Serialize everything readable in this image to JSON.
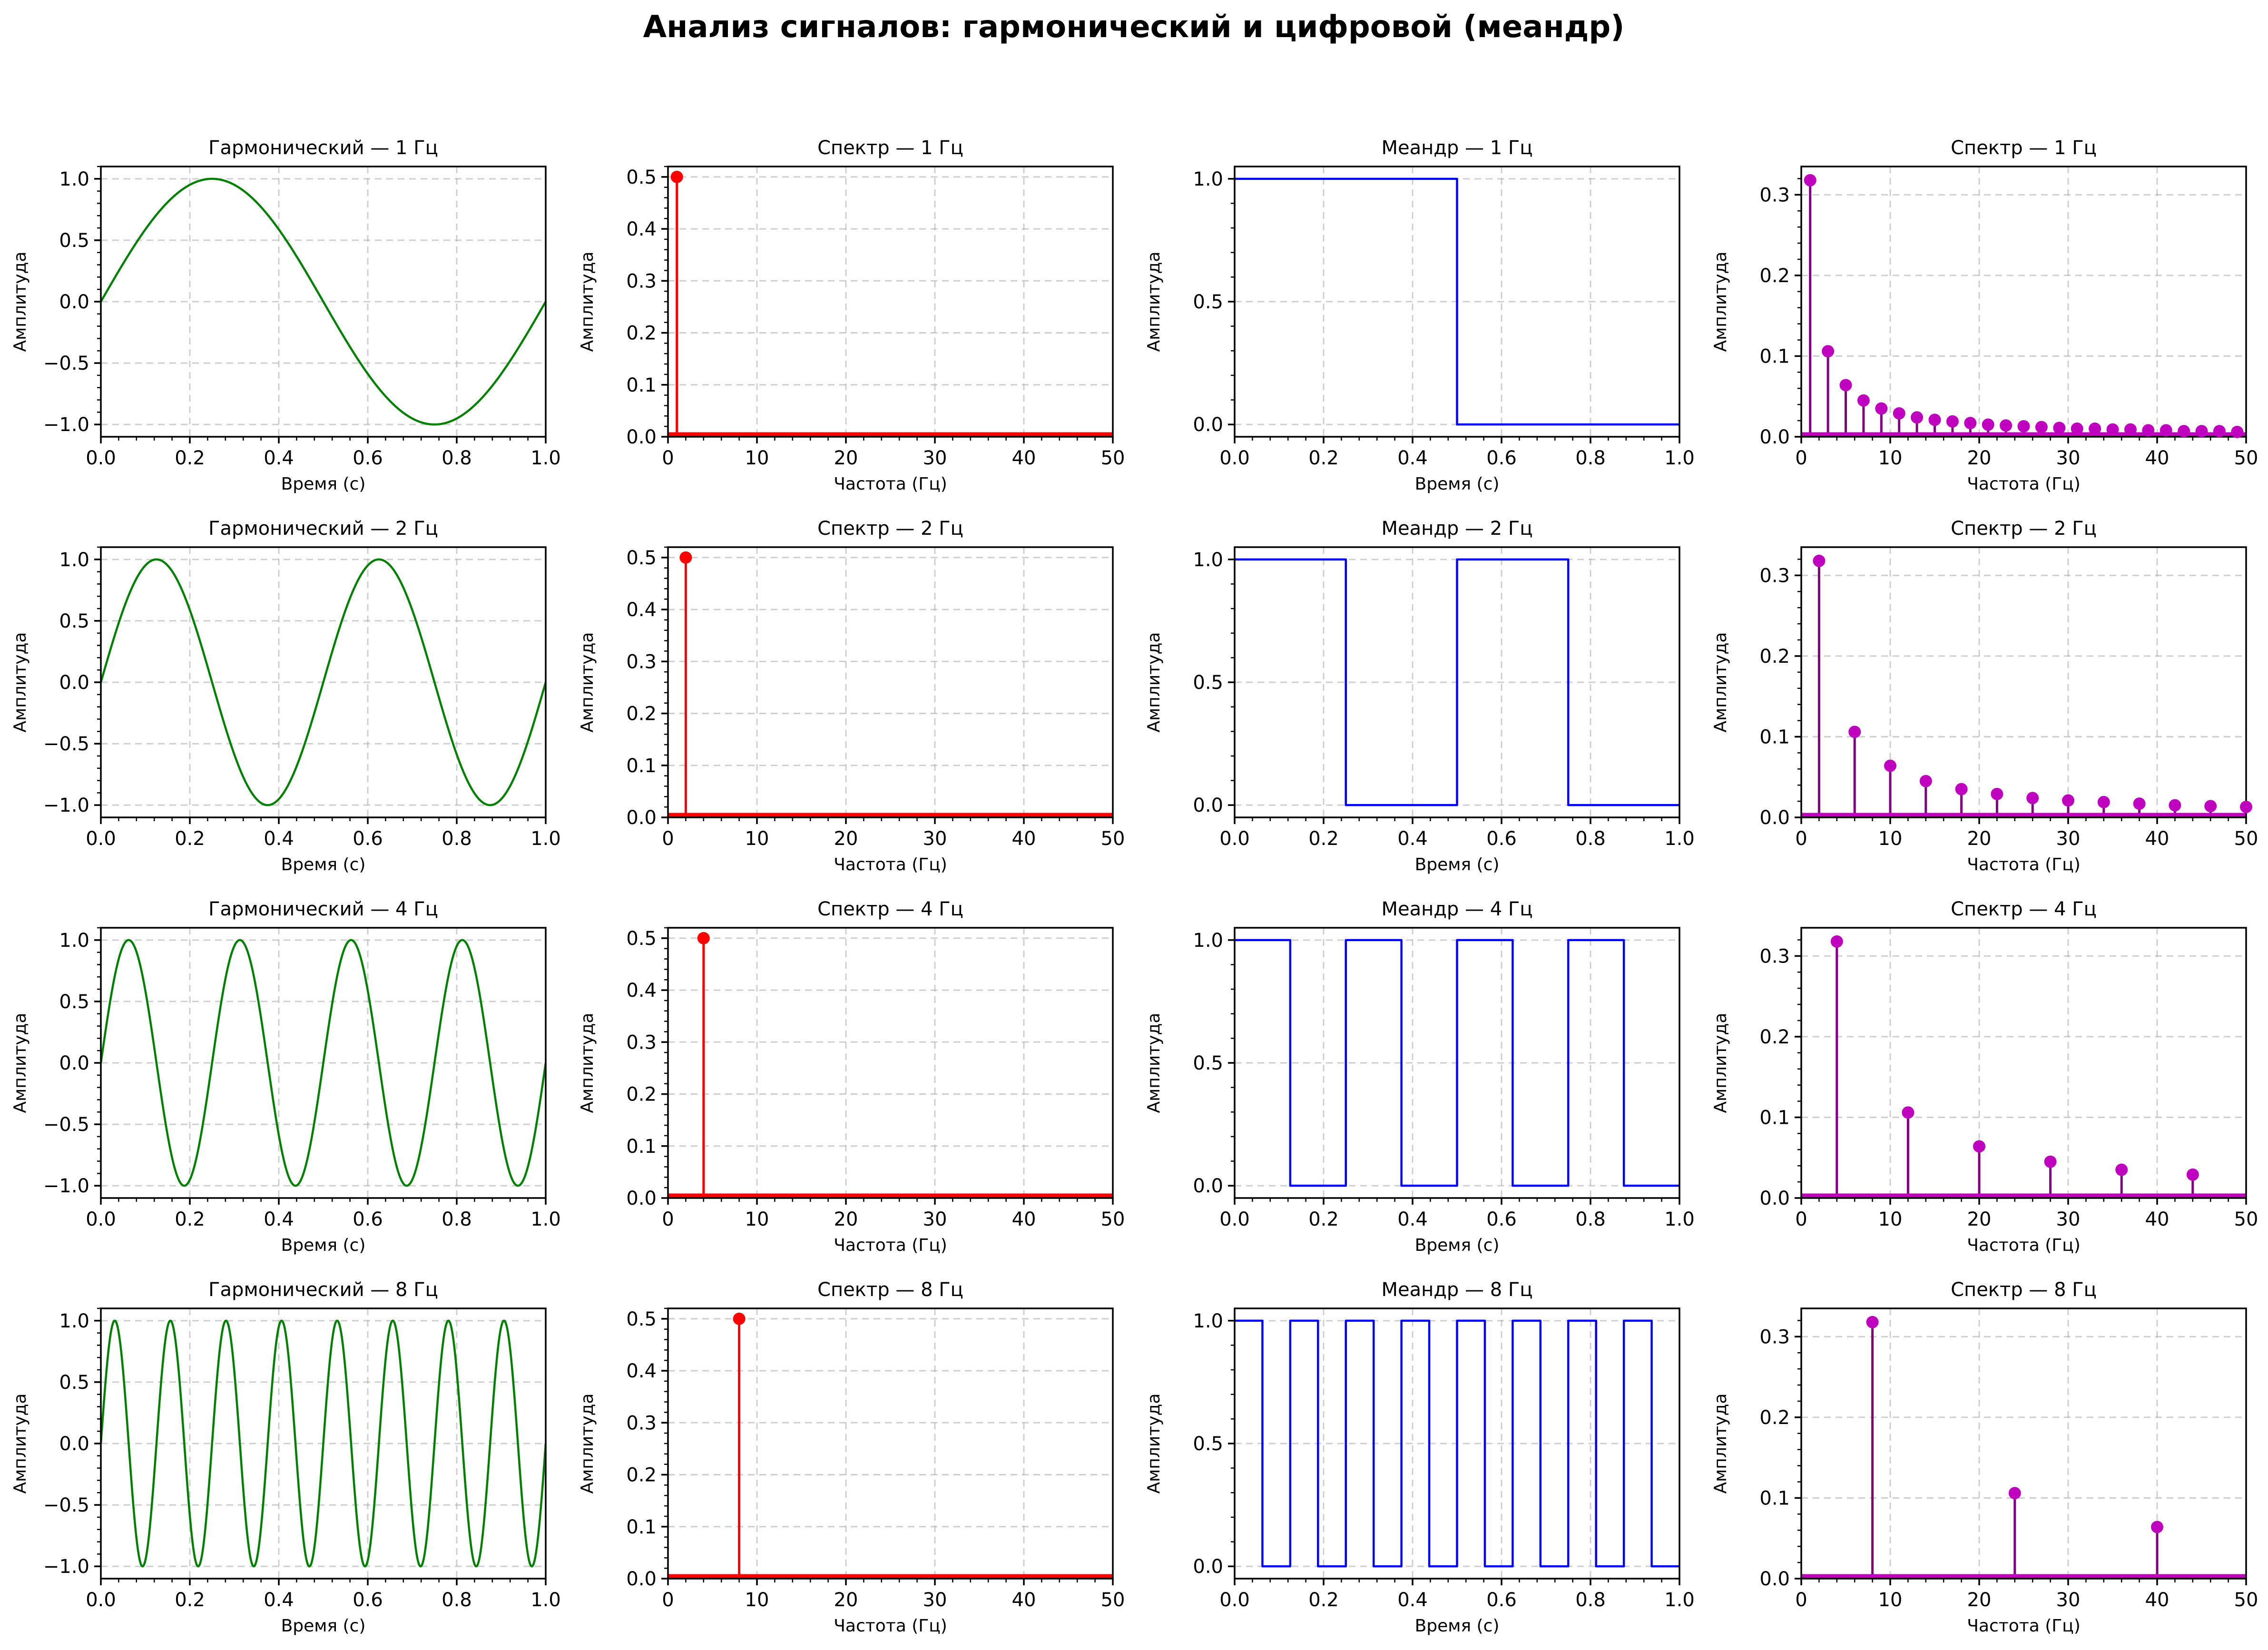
{
  "suptitle": "Анализ сигналов: гармонический и цифровой (меандр)",
  "colors": {
    "harmonic": "#008000",
    "harmonic_spectrum": "#ff0000",
    "meander": "#0000ff",
    "meander_spectrum_marker": "#bf00bf",
    "meander_spectrum_stem": "#800080",
    "grid": "#b0b0b0"
  },
  "chart_data": [
    {
      "type": "line",
      "title": "Гармонический — 1 Гц",
      "xlabel": "Время (с)",
      "ylabel": "Амплитуда",
      "xlim": [
        0,
        1
      ],
      "ylim": [
        -1.1,
        1.1
      ],
      "xticks": [
        0,
        0.2,
        0.4,
        0.6,
        0.8,
        1
      ],
      "xtick_labels": [
        "0.0",
        "0.2",
        "0.4",
        "0.6",
        "0.8",
        "1.0"
      ],
      "yticks": [
        -1,
        -0.5,
        0,
        0.5,
        1
      ],
      "ytick_labels": [
        "−1.0",
        "−0.5",
        "0.0",
        "0.5",
        "1.0"
      ],
      "grid": true,
      "series": [
        {
          "kind": "sine",
          "frequency": 1,
          "amplitude": 1
        }
      ],
      "color": "#008000"
    },
    {
      "type": "stem",
      "title": "Спектр — 1 Гц",
      "xlabel": "Частота (Гц)",
      "ylabel": "Амплитуда",
      "xlim": [
        0,
        50
      ],
      "ylim": [
        0,
        0.52
      ],
      "xticks": [
        0,
        10,
        20,
        30,
        40,
        50
      ],
      "xtick_labels": [
        "0",
        "10",
        "20",
        "30",
        "40",
        "50"
      ],
      "yticks": [
        0,
        0.1,
        0.2,
        0.3,
        0.4,
        0.5
      ],
      "ytick_labels": [
        "0.0",
        "0.1",
        "0.2",
        "0.3",
        "0.4",
        "0.5"
      ],
      "grid": true,
      "baseline": true,
      "points": [
        {
          "x": 1,
          "y": 0.5
        }
      ],
      "color": "#ff0000",
      "stem_color": "#ff0000"
    },
    {
      "type": "line",
      "title": "Меандр — 1 Гц",
      "xlabel": "Время (с)",
      "ylabel": "Амплитуда",
      "xlim": [
        0,
        1
      ],
      "ylim": [
        -0.05,
        1.05
      ],
      "xticks": [
        0,
        0.2,
        0.4,
        0.6,
        0.8,
        1
      ],
      "xtick_labels": [
        "0.0",
        "0.2",
        "0.4",
        "0.6",
        "0.8",
        "1.0"
      ],
      "yticks": [
        0,
        0.5,
        1
      ],
      "ytick_labels": [
        "0.0",
        "0.5",
        "1.0"
      ],
      "grid": true,
      "series": [
        {
          "kind": "square",
          "frequency": 1
        }
      ],
      "color": "#0000ff"
    },
    {
      "type": "stem",
      "title": "Спектр — 1 Гц",
      "xlabel": "Частота (Гц)",
      "ylabel": "Амплитуда",
      "xlim": [
        0,
        50
      ],
      "ylim": [
        0,
        0.335
      ],
      "xticks": [
        0,
        10,
        20,
        30,
        40,
        50
      ],
      "xtick_labels": [
        "0",
        "10",
        "20",
        "30",
        "40",
        "50"
      ],
      "yticks": [
        0,
        0.1,
        0.2,
        0.3
      ],
      "ytick_labels": [
        "0.0",
        "0.1",
        "0.2",
        "0.3"
      ],
      "grid": true,
      "baseline": true,
      "points": [
        {
          "x": 1,
          "y": 0.318
        },
        {
          "x": 3,
          "y": 0.106
        },
        {
          "x": 5,
          "y": 0.064
        },
        {
          "x": 7,
          "y": 0.045
        },
        {
          "x": 9,
          "y": 0.035
        },
        {
          "x": 11,
          "y": 0.029
        },
        {
          "x": 13,
          "y": 0.024
        },
        {
          "x": 15,
          "y": 0.021
        },
        {
          "x": 17,
          "y": 0.019
        },
        {
          "x": 19,
          "y": 0.017
        },
        {
          "x": 21,
          "y": 0.015
        },
        {
          "x": 23,
          "y": 0.014
        },
        {
          "x": 25,
          "y": 0.013
        },
        {
          "x": 27,
          "y": 0.012
        },
        {
          "x": 29,
          "y": 0.011
        },
        {
          "x": 31,
          "y": 0.01
        },
        {
          "x": 33,
          "y": 0.01
        },
        {
          "x": 35,
          "y": 0.009
        },
        {
          "x": 37,
          "y": 0.009
        },
        {
          "x": 39,
          "y": 0.008
        },
        {
          "x": 41,
          "y": 0.008
        },
        {
          "x": 43,
          "y": 0.007
        },
        {
          "x": 45,
          "y": 0.007
        },
        {
          "x": 47,
          "y": 0.007
        },
        {
          "x": 49,
          "y": 0.006
        }
      ],
      "color": "#bf00bf",
      "stem_color": "#800080"
    },
    {
      "type": "line",
      "title": "Гармонический — 2 Гц",
      "xlabel": "Время (с)",
      "ylabel": "Амплитуда",
      "xlim": [
        0,
        1
      ],
      "ylim": [
        -1.1,
        1.1
      ],
      "xticks": [
        0,
        0.2,
        0.4,
        0.6,
        0.8,
        1
      ],
      "xtick_labels": [
        "0.0",
        "0.2",
        "0.4",
        "0.6",
        "0.8",
        "1.0"
      ],
      "yticks": [
        -1,
        -0.5,
        0,
        0.5,
        1
      ],
      "ytick_labels": [
        "−1.0",
        "−0.5",
        "0.0",
        "0.5",
        "1.0"
      ],
      "grid": true,
      "series": [
        {
          "kind": "sine",
          "frequency": 2,
          "amplitude": 1
        }
      ],
      "color": "#008000"
    },
    {
      "type": "stem",
      "title": "Спектр — 2 Гц",
      "xlabel": "Частота (Гц)",
      "ylabel": "Амплитуда",
      "xlim": [
        0,
        50
      ],
      "ylim": [
        0,
        0.52
      ],
      "xticks": [
        0,
        10,
        20,
        30,
        40,
        50
      ],
      "xtick_labels": [
        "0",
        "10",
        "20",
        "30",
        "40",
        "50"
      ],
      "yticks": [
        0,
        0.1,
        0.2,
        0.3,
        0.4,
        0.5
      ],
      "ytick_labels": [
        "0.0",
        "0.1",
        "0.2",
        "0.3",
        "0.4",
        "0.5"
      ],
      "grid": true,
      "baseline": true,
      "points": [
        {
          "x": 2,
          "y": 0.5
        }
      ],
      "color": "#ff0000",
      "stem_color": "#ff0000"
    },
    {
      "type": "line",
      "title": "Меандр — 2 Гц",
      "xlabel": "Время (с)",
      "ylabel": "Амплитуда",
      "xlim": [
        0,
        1
      ],
      "ylim": [
        -0.05,
        1.05
      ],
      "xticks": [
        0,
        0.2,
        0.4,
        0.6,
        0.8,
        1
      ],
      "xtick_labels": [
        "0.0",
        "0.2",
        "0.4",
        "0.6",
        "0.8",
        "1.0"
      ],
      "yticks": [
        0,
        0.5,
        1
      ],
      "ytick_labels": [
        "0.0",
        "0.5",
        "1.0"
      ],
      "grid": true,
      "series": [
        {
          "kind": "square",
          "frequency": 2
        }
      ],
      "color": "#0000ff"
    },
    {
      "type": "stem",
      "title": "Спектр — 2 Гц",
      "xlabel": "Частота (Гц)",
      "ylabel": "Амплитуда",
      "xlim": [
        0,
        50
      ],
      "ylim": [
        0,
        0.335
      ],
      "xticks": [
        0,
        10,
        20,
        30,
        40,
        50
      ],
      "xtick_labels": [
        "0",
        "10",
        "20",
        "30",
        "40",
        "50"
      ],
      "yticks": [
        0,
        0.1,
        0.2,
        0.3
      ],
      "ytick_labels": [
        "0.0",
        "0.1",
        "0.2",
        "0.3"
      ],
      "grid": true,
      "baseline": true,
      "points": [
        {
          "x": 2,
          "y": 0.318
        },
        {
          "x": 6,
          "y": 0.106
        },
        {
          "x": 10,
          "y": 0.064
        },
        {
          "x": 14,
          "y": 0.045
        },
        {
          "x": 18,
          "y": 0.035
        },
        {
          "x": 22,
          "y": 0.029
        },
        {
          "x": 26,
          "y": 0.024
        },
        {
          "x": 30,
          "y": 0.021
        },
        {
          "x": 34,
          "y": 0.019
        },
        {
          "x": 38,
          "y": 0.017
        },
        {
          "x": 42,
          "y": 0.015
        },
        {
          "x": 46,
          "y": 0.014
        },
        {
          "x": 50,
          "y": 0.013
        }
      ],
      "color": "#bf00bf",
      "stem_color": "#800080"
    },
    {
      "type": "line",
      "title": "Гармонический — 4 Гц",
      "xlabel": "Время (с)",
      "ylabel": "Амплитуда",
      "xlim": [
        0,
        1
      ],
      "ylim": [
        -1.1,
        1.1
      ],
      "xticks": [
        0,
        0.2,
        0.4,
        0.6,
        0.8,
        1
      ],
      "xtick_labels": [
        "0.0",
        "0.2",
        "0.4",
        "0.6",
        "0.8",
        "1.0"
      ],
      "yticks": [
        -1,
        -0.5,
        0,
        0.5,
        1
      ],
      "ytick_labels": [
        "−1.0",
        "−0.5",
        "0.0",
        "0.5",
        "1.0"
      ],
      "grid": true,
      "series": [
        {
          "kind": "sine",
          "frequency": 4,
          "amplitude": 1
        }
      ],
      "color": "#008000"
    },
    {
      "type": "stem",
      "title": "Спектр — 4 Гц",
      "xlabel": "Частота (Гц)",
      "ylabel": "Амплитуда",
      "xlim": [
        0,
        50
      ],
      "ylim": [
        0,
        0.52
      ],
      "xticks": [
        0,
        10,
        20,
        30,
        40,
        50
      ],
      "xtick_labels": [
        "0",
        "10",
        "20",
        "30",
        "40",
        "50"
      ],
      "yticks": [
        0,
        0.1,
        0.2,
        0.3,
        0.4,
        0.5
      ],
      "ytick_labels": [
        "0.0",
        "0.1",
        "0.2",
        "0.3",
        "0.4",
        "0.5"
      ],
      "grid": true,
      "baseline": true,
      "points": [
        {
          "x": 4,
          "y": 0.5
        }
      ],
      "color": "#ff0000",
      "stem_color": "#ff0000"
    },
    {
      "type": "line",
      "title": "Меандр — 4 Гц",
      "xlabel": "Время (с)",
      "ylabel": "Амплитуда",
      "xlim": [
        0,
        1
      ],
      "ylim": [
        -0.05,
        1.05
      ],
      "xticks": [
        0,
        0.2,
        0.4,
        0.6,
        0.8,
        1
      ],
      "xtick_labels": [
        "0.0",
        "0.2",
        "0.4",
        "0.6",
        "0.8",
        "1.0"
      ],
      "yticks": [
        0,
        0.5,
        1
      ],
      "ytick_labels": [
        "0.0",
        "0.5",
        "1.0"
      ],
      "grid": true,
      "series": [
        {
          "kind": "square",
          "frequency": 4
        }
      ],
      "color": "#0000ff"
    },
    {
      "type": "stem",
      "title": "Спектр — 4 Гц",
      "xlabel": "Частота (Гц)",
      "ylabel": "Амплитуда",
      "xlim": [
        0,
        50
      ],
      "ylim": [
        0,
        0.335
      ],
      "xticks": [
        0,
        10,
        20,
        30,
        40,
        50
      ],
      "xtick_labels": [
        "0",
        "10",
        "20",
        "30",
        "40",
        "50"
      ],
      "yticks": [
        0,
        0.1,
        0.2,
        0.3
      ],
      "ytick_labels": [
        "0.0",
        "0.1",
        "0.2",
        "0.3"
      ],
      "grid": true,
      "baseline": true,
      "points": [
        {
          "x": 4,
          "y": 0.318
        },
        {
          "x": 12,
          "y": 0.106
        },
        {
          "x": 20,
          "y": 0.064
        },
        {
          "x": 28,
          "y": 0.045
        },
        {
          "x": 36,
          "y": 0.035
        },
        {
          "x": 44,
          "y": 0.029
        }
      ],
      "color": "#bf00bf",
      "stem_color": "#800080"
    },
    {
      "type": "line",
      "title": "Гармонический — 8 Гц",
      "xlabel": "Время (с)",
      "ylabel": "Амплитуда",
      "xlim": [
        0,
        1
      ],
      "ylim": [
        -1.1,
        1.1
      ],
      "xticks": [
        0,
        0.2,
        0.4,
        0.6,
        0.8,
        1
      ],
      "xtick_labels": [
        "0.0",
        "0.2",
        "0.4",
        "0.6",
        "0.8",
        "1.0"
      ],
      "yticks": [
        -1,
        -0.5,
        0,
        0.5,
        1
      ],
      "ytick_labels": [
        "−1.0",
        "−0.5",
        "0.0",
        "0.5",
        "1.0"
      ],
      "grid": true,
      "series": [
        {
          "kind": "sine",
          "frequency": 8,
          "amplitude": 1
        }
      ],
      "color": "#008000"
    },
    {
      "type": "stem",
      "title": "Спектр — 8 Гц",
      "xlabel": "Частота (Гц)",
      "ylabel": "Амплитуда",
      "xlim": [
        0,
        50
      ],
      "ylim": [
        0,
        0.52
      ],
      "xticks": [
        0,
        10,
        20,
        30,
        40,
        50
      ],
      "xtick_labels": [
        "0",
        "10",
        "20",
        "30",
        "40",
        "50"
      ],
      "yticks": [
        0,
        0.1,
        0.2,
        0.3,
        0.4,
        0.5
      ],
      "ytick_labels": [
        "0.0",
        "0.1",
        "0.2",
        "0.3",
        "0.4",
        "0.5"
      ],
      "grid": true,
      "baseline": true,
      "points": [
        {
          "x": 8,
          "y": 0.5
        }
      ],
      "color": "#ff0000",
      "stem_color": "#ff0000"
    },
    {
      "type": "line",
      "title": "Меандр — 8 Гц",
      "xlabel": "Время (с)",
      "ylabel": "Амплитуда",
      "xlim": [
        0,
        1
      ],
      "ylim": [
        -0.05,
        1.05
      ],
      "xticks": [
        0,
        0.2,
        0.4,
        0.6,
        0.8,
        1
      ],
      "xtick_labels": [
        "0.0",
        "0.2",
        "0.4",
        "0.6",
        "0.8",
        "1.0"
      ],
      "yticks": [
        0,
        0.5,
        1
      ],
      "ytick_labels": [
        "0.0",
        "0.5",
        "1.0"
      ],
      "grid": true,
      "series": [
        {
          "kind": "square",
          "frequency": 8
        }
      ],
      "color": "#0000ff"
    },
    {
      "type": "stem",
      "title": "Спектр — 8 Гц",
      "xlabel": "Частота (Гц)",
      "ylabel": "Амплитуда",
      "xlim": [
        0,
        50
      ],
      "ylim": [
        0,
        0.335
      ],
      "xticks": [
        0,
        10,
        20,
        30,
        40,
        50
      ],
      "xtick_labels": [
        "0",
        "10",
        "20",
        "30",
        "40",
        "50"
      ],
      "yticks": [
        0,
        0.1,
        0.2,
        0.3
      ],
      "ytick_labels": [
        "0.0",
        "0.1",
        "0.2",
        "0.3"
      ],
      "grid": true,
      "baseline": true,
      "points": [
        {
          "x": 8,
          "y": 0.318
        },
        {
          "x": 24,
          "y": 0.106
        },
        {
          "x": 40,
          "y": 0.064
        }
      ],
      "color": "#bf00bf",
      "stem_color": "#800080"
    }
  ]
}
